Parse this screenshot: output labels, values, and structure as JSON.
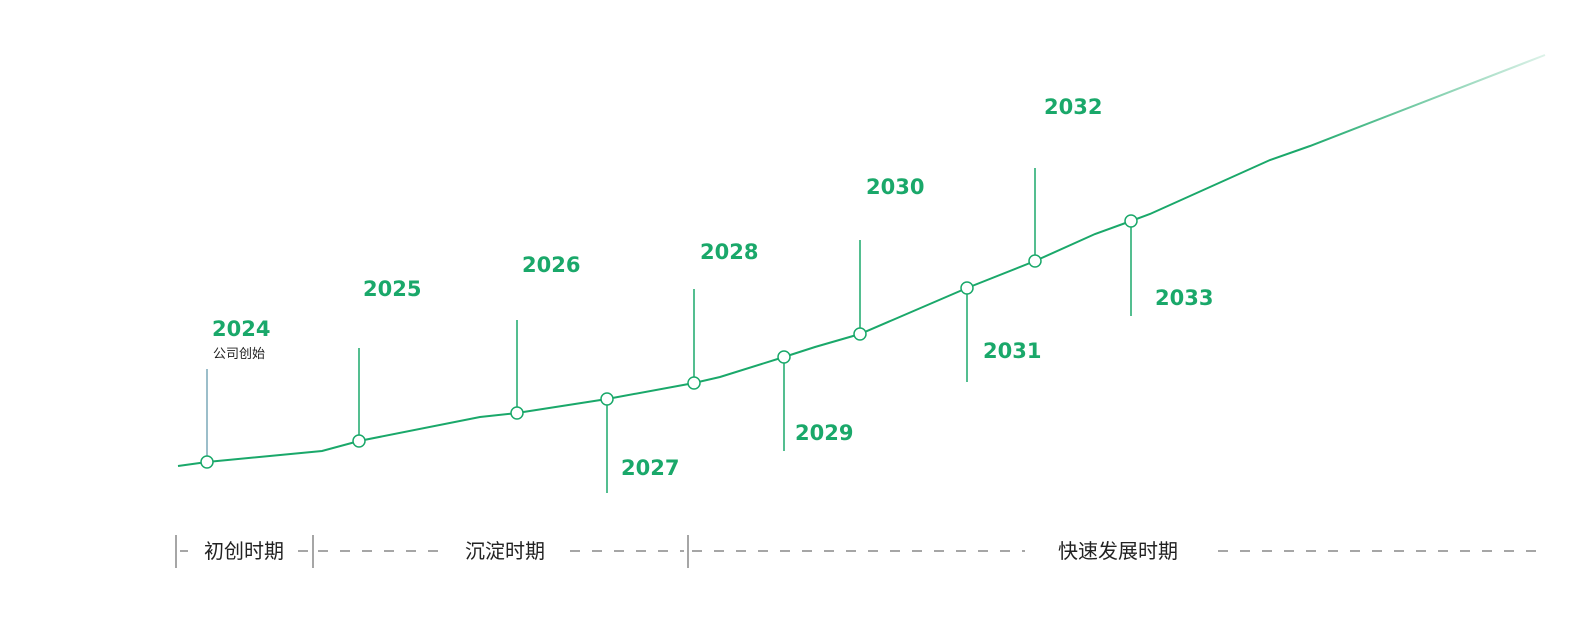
{
  "milestones": [
    {
      "year": "2024",
      "note": "公司创始"
    },
    {
      "year": "2025"
    },
    {
      "year": "2026"
    },
    {
      "year": "2027"
    },
    {
      "year": "2028"
    },
    {
      "year": "2029"
    },
    {
      "year": "2030"
    },
    {
      "year": "2031"
    },
    {
      "year": "2032"
    },
    {
      "year": "2033"
    }
  ],
  "phases": [
    "初创时期",
    "沉淀时期",
    "快速发展时期"
  ]
}
